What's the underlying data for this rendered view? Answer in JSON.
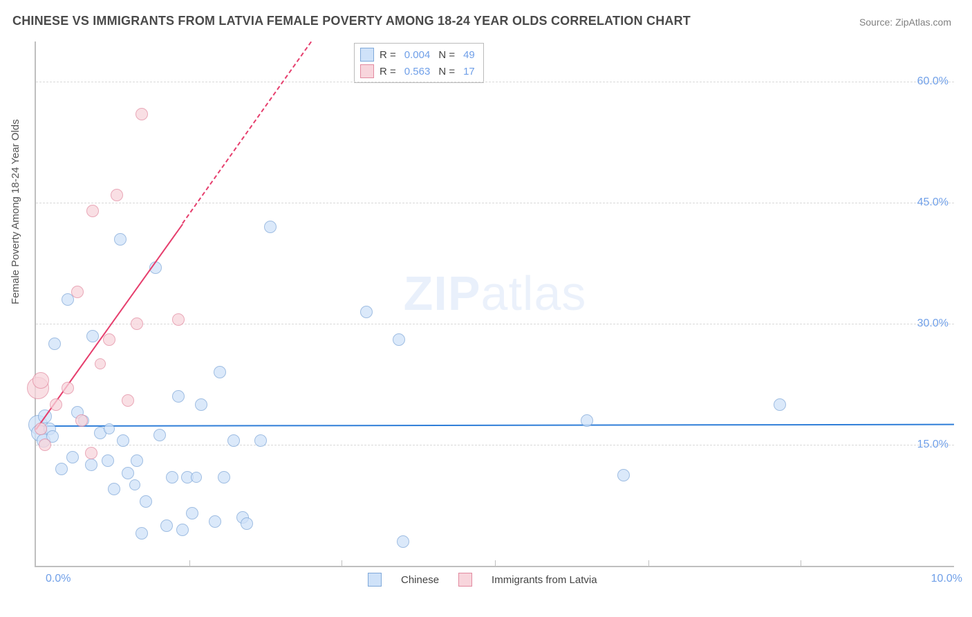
{
  "title": "CHINESE VS IMMIGRANTS FROM LATVIA FEMALE POVERTY AMONG 18-24 YEAR OLDS CORRELATION CHART",
  "source": {
    "label": "Source:",
    "value": "ZipAtlas.com"
  },
  "watermark": {
    "bold": "ZIP",
    "thin": "atlas"
  },
  "chart": {
    "type": "scatter",
    "background_color": "#ffffff",
    "grid_color": "#d9d9d9",
    "axis_color": "#bfbfbf",
    "tick_label_color": "#6f9fe8",
    "tick_fontsize": 16,
    "xlim": [
      0,
      10
    ],
    "ylim": [
      0,
      65
    ],
    "x_ticks_minor": [
      1.67,
      3.33,
      5.0,
      6.67,
      8.33
    ],
    "y_gridlines": [
      15,
      30,
      45,
      60
    ],
    "y_tick_labels": [
      "15.0%",
      "30.0%",
      "45.0%",
      "60.0%"
    ],
    "x_tick_labels": {
      "min": "0.0%",
      "max": "10.0%"
    },
    "y_axis_label": "Female Poverty Among 18-24 Year Olds",
    "label_fontsize": 15,
    "series": [
      {
        "id": "chinese",
        "label": "Chinese",
        "fill": "#cfe2f9",
        "stroke": "#7fa8d9",
        "opacity": 0.75,
        "legend_stats": {
          "R": "0.004",
          "N": "49"
        },
        "trend": {
          "color": "#2f7ed8",
          "dash": "solid",
          "width": 2.5,
          "x1": 0.0,
          "y1": 17.4,
          "x2": 10.0,
          "y2": 17.6
        },
        "points": [
          {
            "x": 0.02,
            "y": 17.5,
            "r": 14
          },
          {
            "x": 0.04,
            "y": 16.5,
            "r": 12
          },
          {
            "x": 0.08,
            "y": 15.5,
            "r": 10
          },
          {
            "x": 0.1,
            "y": 18.5,
            "r": 10
          },
          {
            "x": 0.15,
            "y": 17.0,
            "r": 9
          },
          {
            "x": 0.18,
            "y": 16.0,
            "r": 9
          },
          {
            "x": 0.2,
            "y": 27.5,
            "r": 9
          },
          {
            "x": 0.28,
            "y": 12.0,
            "r": 9
          },
          {
            "x": 0.35,
            "y": 33.0,
            "r": 9
          },
          {
            "x": 0.4,
            "y": 13.5,
            "r": 9
          },
          {
            "x": 0.45,
            "y": 19.0,
            "r": 9
          },
          {
            "x": 0.52,
            "y": 18.0,
            "r": 8
          },
          {
            "x": 0.6,
            "y": 12.5,
            "r": 9
          },
          {
            "x": 0.62,
            "y": 28.5,
            "r": 9
          },
          {
            "x": 0.7,
            "y": 16.5,
            "r": 9
          },
          {
            "x": 0.78,
            "y": 13.0,
            "r": 9
          },
          {
            "x": 0.8,
            "y": 17.0,
            "r": 8
          },
          {
            "x": 0.85,
            "y": 9.5,
            "r": 9
          },
          {
            "x": 0.92,
            "y": 40.5,
            "r": 9
          },
          {
            "x": 0.95,
            "y": 15.5,
            "r": 9
          },
          {
            "x": 1.0,
            "y": 11.5,
            "r": 9
          },
          {
            "x": 1.1,
            "y": 13.0,
            "r": 9
          },
          {
            "x": 1.15,
            "y": 4.0,
            "r": 9
          },
          {
            "x": 1.2,
            "y": 8.0,
            "r": 9
          },
          {
            "x": 1.3,
            "y": 37.0,
            "r": 9
          },
          {
            "x": 1.35,
            "y": 16.2,
            "r": 9
          },
          {
            "x": 1.42,
            "y": 5.0,
            "r": 9
          },
          {
            "x": 1.48,
            "y": 11.0,
            "r": 9
          },
          {
            "x": 1.55,
            "y": 21.0,
            "r": 9
          },
          {
            "x": 1.6,
            "y": 4.5,
            "r": 9
          },
          {
            "x": 1.65,
            "y": 11.0,
            "r": 9
          },
          {
            "x": 1.7,
            "y": 6.5,
            "r": 9
          },
          {
            "x": 1.75,
            "y": 11.0,
            "r": 8
          },
          {
            "x": 1.8,
            "y": 20.0,
            "r": 9
          },
          {
            "x": 1.95,
            "y": 5.5,
            "r": 9
          },
          {
            "x": 2.0,
            "y": 24.0,
            "r": 9
          },
          {
            "x": 2.05,
            "y": 11.0,
            "r": 9
          },
          {
            "x": 2.15,
            "y": 15.5,
            "r": 9
          },
          {
            "x": 2.25,
            "y": 6.0,
            "r": 9
          },
          {
            "x": 2.3,
            "y": 5.2,
            "r": 9
          },
          {
            "x": 2.45,
            "y": 15.5,
            "r": 9
          },
          {
            "x": 2.55,
            "y": 42.0,
            "r": 9
          },
          {
            "x": 3.6,
            "y": 31.5,
            "r": 9
          },
          {
            "x": 3.95,
            "y": 28.0,
            "r": 9
          },
          {
            "x": 4.0,
            "y": 3.0,
            "r": 9
          },
          {
            "x": 6.0,
            "y": 18.0,
            "r": 9
          },
          {
            "x": 6.4,
            "y": 11.2,
            "r": 9
          },
          {
            "x": 8.1,
            "y": 20.0,
            "r": 9
          },
          {
            "x": 1.08,
            "y": 10.0,
            "r": 8
          }
        ]
      },
      {
        "id": "latvia",
        "label": "Immigrants from Latvia",
        "fill": "#f8d5dc",
        "stroke": "#e28aa0",
        "opacity": 0.75,
        "legend_stats": {
          "R": "0.563",
          "N": "17"
        },
        "trend": {
          "color": "#e63e6d",
          "dash": "solid",
          "width": 2.5,
          "x1": 0.0,
          "y1": 17.0,
          "x2": 1.6,
          "y2": 42.5,
          "dash_ext": {
            "x1": 1.6,
            "y1": 42.5,
            "x2": 3.0,
            "y2": 65.0
          }
        },
        "points": [
          {
            "x": 0.02,
            "y": 22.0,
            "r": 16
          },
          {
            "x": 0.05,
            "y": 23.0,
            "r": 12
          },
          {
            "x": 0.05,
            "y": 17.0,
            "r": 9
          },
          {
            "x": 0.1,
            "y": 15.0,
            "r": 9
          },
          {
            "x": 0.22,
            "y": 20.0,
            "r": 9
          },
          {
            "x": 0.35,
            "y": 22.0,
            "r": 9
          },
          {
            "x": 0.45,
            "y": 34.0,
            "r": 9
          },
          {
            "x": 0.5,
            "y": 18.0,
            "r": 9
          },
          {
            "x": 0.6,
            "y": 14.0,
            "r": 9
          },
          {
            "x": 0.62,
            "y": 44.0,
            "r": 9
          },
          {
            "x": 0.7,
            "y": 25.0,
            "r": 8
          },
          {
            "x": 0.8,
            "y": 28.0,
            "r": 9
          },
          {
            "x": 0.88,
            "y": 46.0,
            "r": 9
          },
          {
            "x": 1.0,
            "y": 20.5,
            "r": 9
          },
          {
            "x": 1.1,
            "y": 30.0,
            "r": 9
          },
          {
            "x": 1.15,
            "y": 56.0,
            "r": 9
          },
          {
            "x": 1.55,
            "y": 30.5,
            "r": 9
          }
        ]
      }
    ],
    "legend_top": {
      "rows": [
        {
          "swatch_fill": "#cfe2f9",
          "swatch_stroke": "#7fa8d9",
          "R_label": "R =",
          "R": "0.004",
          "N_label": "N =",
          "N": "49"
        },
        {
          "swatch_fill": "#f8d5dc",
          "swatch_stroke": "#e28aa0",
          "R_label": "R =",
          "R": "0.563",
          "N_label": "N =",
          "N": "17"
        }
      ]
    },
    "legend_bottom": [
      {
        "swatch_fill": "#cfe2f9",
        "swatch_stroke": "#7fa8d9",
        "label": "Chinese"
      },
      {
        "swatch_fill": "#f8d5dc",
        "swatch_stroke": "#e28aa0",
        "label": "Immigrants from Latvia"
      }
    ]
  }
}
